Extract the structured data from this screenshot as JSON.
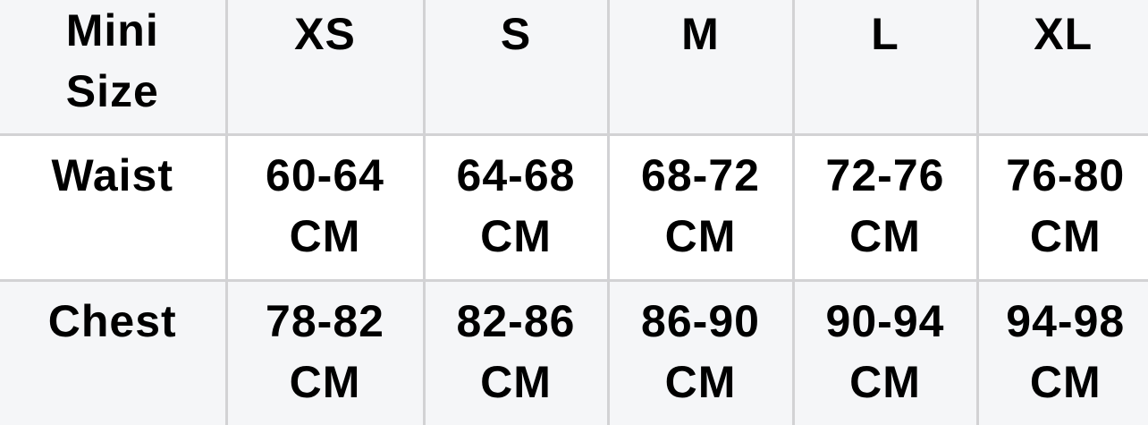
{
  "header": [
    "Mini Size",
    "XS",
    "S",
    "M",
    "L",
    "XL"
  ],
  "rows": [
    {
      "label": "Waist",
      "values": [
        "60-64 CM",
        "64-68 CM",
        "68-72 CM",
        "72-76 CM",
        "76-80 CM"
      ]
    },
    {
      "label": "Chest",
      "values": [
        "78-82 CM",
        "82-86 CM",
        "86-90 CM",
        "90-94 CM",
        "94-98 CM"
      ]
    }
  ],
  "colors": {
    "header_bg": "#f5f6f8",
    "alt_row_bg": "#ffffff",
    "border": "#d2d2d4"
  }
}
